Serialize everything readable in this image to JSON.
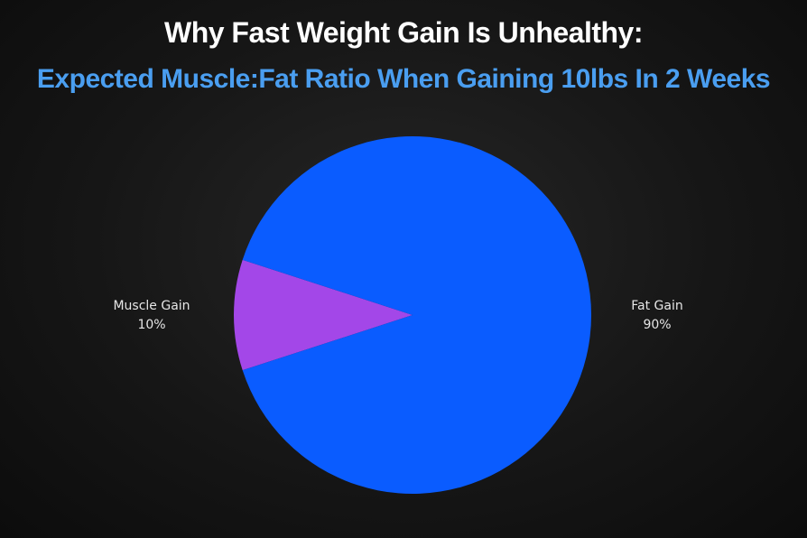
{
  "chart_data": {
    "type": "pie",
    "title": "Why Fast Weight Gain Is Unhealthy:",
    "subtitle": "Expected Muscle:Fat Ratio When Gaining 10lbs In 2 Weeks",
    "slices": [
      {
        "label": "Muscle Gain",
        "value": 10,
        "value_label": "10%",
        "color": "#a347e8"
      },
      {
        "label": "Fat Gain",
        "value": 90,
        "value_label": "90%",
        "color": "#0a5cff"
      }
    ],
    "legend": "none"
  },
  "colors": {
    "title": "#ffffff",
    "subtitle": "#4a9ef0",
    "label_text": "#e6e6e6"
  }
}
